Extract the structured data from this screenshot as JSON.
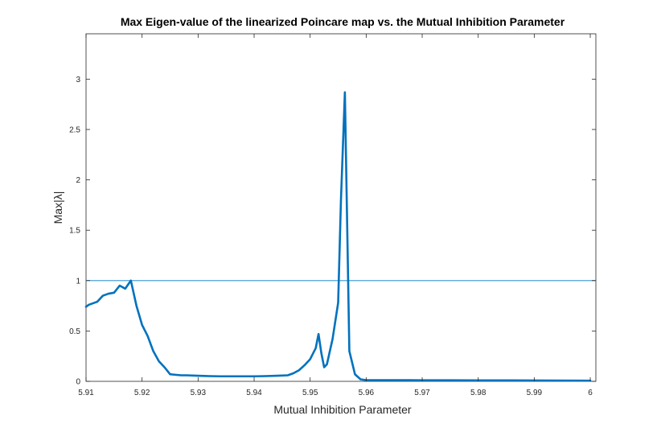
{
  "chart_data": {
    "type": "line",
    "title": "Max Eigen-value of the linearized Poincare map vs. the Mutual Inhibition Parameter",
    "xlabel": "Mutual Inhibition Parameter",
    "ylabel": "Max|λ|",
    "xlim": [
      5.91,
      6.001
    ],
    "ylim": [
      0,
      3.45
    ],
    "grid": false,
    "xticks": [
      5.91,
      5.92,
      5.93,
      5.94,
      5.95,
      5.96,
      5.97,
      5.98,
      5.99,
      6.0
    ],
    "xtick_labels": [
      "5.91",
      "5.92",
      "5.93",
      "5.94",
      "5.95",
      "5.96",
      "5.97",
      "5.98",
      "5.99",
      "6"
    ],
    "yticks": [
      0,
      0.5,
      1,
      1.5,
      2,
      2.5,
      3
    ],
    "ytick_labels": [
      "0",
      "0.5",
      "1",
      "1.5",
      "2",
      "2.5",
      "3"
    ],
    "colors": {
      "series": "#0072BD",
      "reference": "#4DA0D8",
      "axes": "#262626"
    },
    "series": [
      {
        "x": [
          5.91,
          5.9105,
          5.911,
          5.912,
          5.913,
          5.914,
          5.915,
          5.916,
          5.917,
          5.918,
          5.919,
          5.92,
          5.921,
          5.922,
          5.923,
          5.924,
          5.925,
          5.926,
          5.927,
          5.928,
          5.93,
          5.932,
          5.934,
          5.936,
          5.938,
          5.94,
          5.942,
          5.944,
          5.946,
          5.947,
          5.948,
          5.949,
          5.95,
          5.951,
          5.9515,
          5.952,
          5.9525,
          5.953,
          5.954,
          5.955,
          5.9555,
          5.9562,
          5.957,
          5.958,
          5.959,
          5.96,
          5.962,
          5.965,
          5.97,
          5.975,
          5.98,
          5.985,
          5.99,
          5.995,
          6.0
        ],
        "y": [
          0.74,
          0.76,
          0.77,
          0.79,
          0.85,
          0.87,
          0.88,
          0.95,
          0.92,
          1.0,
          0.75,
          0.56,
          0.45,
          0.3,
          0.2,
          0.14,
          0.07,
          0.065,
          0.06,
          0.06,
          0.055,
          0.052,
          0.05,
          0.05,
          0.05,
          0.05,
          0.052,
          0.055,
          0.06,
          0.08,
          0.11,
          0.16,
          0.22,
          0.33,
          0.47,
          0.28,
          0.14,
          0.17,
          0.42,
          0.78,
          1.8,
          2.87,
          0.3,
          0.07,
          0.02,
          0.012,
          0.012,
          0.012,
          0.011,
          0.011,
          0.01,
          0.01,
          0.009,
          0.008,
          0.007
        ]
      },
      {
        "x": [
          5.91,
          6.001
        ],
        "y": [
          1,
          1
        ]
      }
    ]
  }
}
